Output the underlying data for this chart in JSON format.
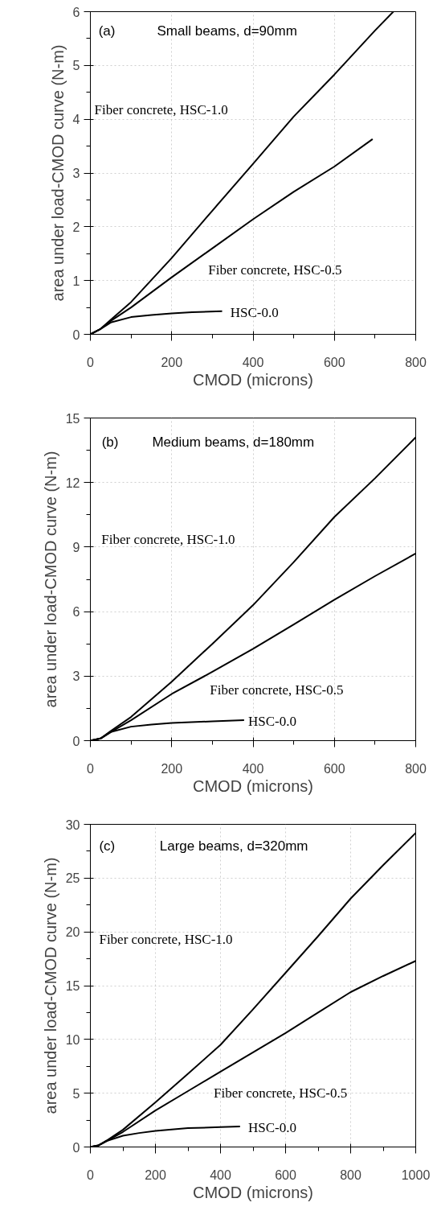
{
  "chart_data": [
    {
      "type": "line",
      "title": "Small beams, d=90mm",
      "xlabel": "CMOD (microns)",
      "ylabel": "area under load-CMOD curve (N-m)",
      "xlim": [
        0,
        800
      ],
      "ylim": [
        0,
        6
      ],
      "xticks": [
        0,
        200,
        400,
        600,
        800
      ],
      "yticks": [
        0,
        1,
        2,
        3,
        4,
        5,
        6
      ],
      "grid": true,
      "annotations": [
        "(a)",
        "Fiber concrete, HSC-1.0",
        "Fiber concrete, HSC-0.5",
        "HSC-0.0"
      ],
      "series": [
        {
          "color": "#000000",
          "x": [
            0,
            25,
            50,
            100,
            200,
            300,
            400,
            500,
            600,
            700,
            745
          ],
          "values": [
            0,
            0.1,
            0.27,
            0.6,
            1.42,
            2.3,
            3.17,
            4.05,
            4.83,
            5.65,
            6.0
          ]
        },
        {
          "color": "#000000",
          "x": [
            0,
            25,
            50,
            100,
            200,
            300,
            400,
            500,
            600,
            694
          ],
          "values": [
            0,
            0.1,
            0.25,
            0.5,
            1.06,
            1.6,
            2.14,
            2.65,
            3.12,
            3.63
          ]
        },
        {
          "color": "#000000",
          "x": [
            0,
            25,
            50,
            100,
            150,
            200,
            250,
            324
          ],
          "values": [
            0,
            0.1,
            0.22,
            0.32,
            0.36,
            0.39,
            0.41,
            0.43
          ]
        }
      ]
    },
    {
      "type": "line",
      "title": "Medium beams, d=180mm",
      "xlabel": "CMOD (microns)",
      "ylabel": "area under load-CMOD curve (N-m)",
      "xlim": [
        0,
        800
      ],
      "ylim": [
        0,
        15
      ],
      "xticks": [
        0,
        200,
        400,
        600,
        800
      ],
      "yticks": [
        0,
        3,
        6,
        9,
        12,
        15
      ],
      "grid": true,
      "annotations": [
        "(b)",
        "Fiber concrete, HSC-1.0",
        "Fiber concrete, HSC-0.5",
        "HSC-0.0"
      ],
      "series": [
        {
          "color": "#000000",
          "x": [
            0,
            25,
            50,
            100,
            200,
            300,
            400,
            500,
            600,
            700,
            800
          ],
          "values": [
            0,
            0.1,
            0.45,
            1.1,
            2.74,
            4.5,
            6.3,
            8.3,
            10.4,
            12.2,
            14.1
          ]
        },
        {
          "color": "#000000",
          "x": [
            0,
            25,
            50,
            100,
            200,
            300,
            400,
            500,
            600,
            700,
            800
          ],
          "values": [
            0,
            0.1,
            0.4,
            0.95,
            2.17,
            3.2,
            4.27,
            5.4,
            6.55,
            7.65,
            8.7
          ]
        },
        {
          "color": "#000000",
          "x": [
            0,
            25,
            50,
            100,
            150,
            200,
            300,
            378
          ],
          "values": [
            0,
            0.1,
            0.4,
            0.65,
            0.75,
            0.82,
            0.9,
            0.95
          ]
        }
      ]
    },
    {
      "type": "line",
      "title": "Large beams, d=320mm",
      "xlabel": "CMOD (microns)",
      "ylabel": "area under load-CMOD curve (N-m)",
      "xlim": [
        0,
        1000
      ],
      "ylim": [
        0,
        30
      ],
      "xticks": [
        0,
        200,
        400,
        600,
        800,
        1000
      ],
      "yticks": [
        0,
        5,
        10,
        15,
        20,
        25,
        30
      ],
      "grid": true,
      "annotations": [
        "(c)",
        "Fiber concrete, HSC-1.0",
        "Fiber concrete, HSC-0.5",
        "HSC-0.0"
      ],
      "series": [
        {
          "color": "#000000",
          "x": [
            0,
            25,
            50,
            100,
            200,
            300,
            400,
            500,
            600,
            700,
            800,
            900,
            1000
          ],
          "values": [
            0,
            0.15,
            0.6,
            1.6,
            4.15,
            6.8,
            9.5,
            12.8,
            16.2,
            19.6,
            23.1,
            26.2,
            29.2
          ]
        },
        {
          "color": "#000000",
          "x": [
            0,
            25,
            50,
            100,
            200,
            300,
            400,
            500,
            600,
            700,
            800,
            900,
            1000
          ],
          "values": [
            0,
            0.15,
            0.55,
            1.4,
            3.4,
            5.2,
            7.0,
            8.8,
            10.6,
            12.5,
            14.4,
            15.9,
            17.3
          ]
        },
        {
          "color": "#000000",
          "x": [
            0,
            25,
            50,
            100,
            150,
            200,
            300,
            400,
            460
          ],
          "values": [
            0,
            0.15,
            0.55,
            1.05,
            1.3,
            1.5,
            1.75,
            1.85,
            1.9
          ]
        }
      ]
    }
  ]
}
